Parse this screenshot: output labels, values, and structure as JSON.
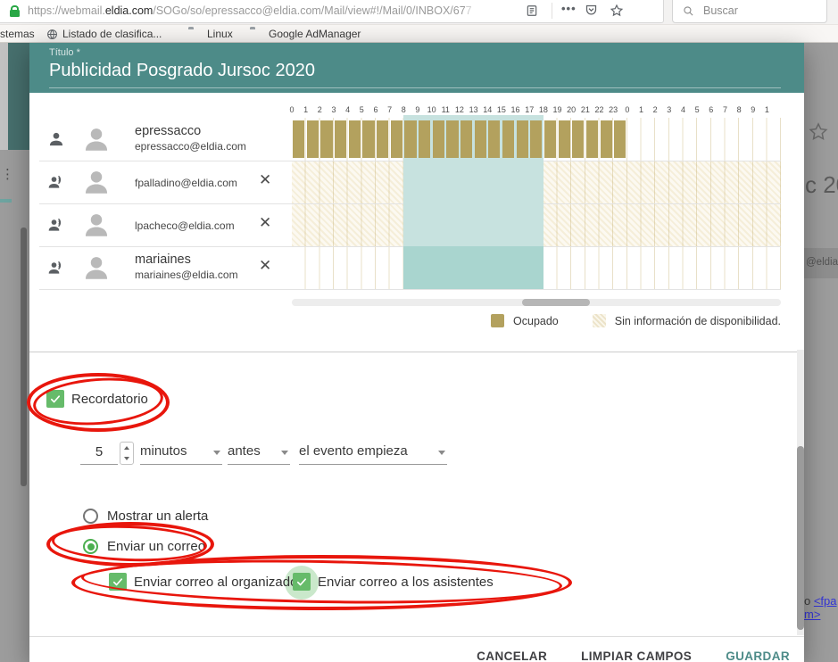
{
  "browser": {
    "url_scheme": "https://webmail.",
    "url_domain": "eldia.com",
    "url_path": "/SOGo/so/epressacco@eldia.com/Mail/view#!/Mail/0/INBOX/67",
    "url_faded": "7",
    "search_placeholder": "Buscar",
    "bookmarks": [
      "stemas",
      "Listado de clasifica...",
      "Linux",
      "Google AdManager"
    ]
  },
  "background": {
    "partial_title": "c 20",
    "partial_email": "@eldia",
    "link_prefix": "o ",
    "link1": "<fpa",
    "link2": "m>"
  },
  "dialog": {
    "title_label": "Título *",
    "title_value": "Publicidad Posgrado Jursoc 2020",
    "attendees": [
      {
        "name": "epressacco",
        "email": "epressacco@eldia.com",
        "removable": false,
        "availability": "busy",
        "busy_start": 0,
        "busy_end": 24,
        "band": "light"
      },
      {
        "name": "",
        "email": "fpalladino@eldia.com",
        "removable": true,
        "availability": "noinfo",
        "band": "light"
      },
      {
        "name": "",
        "email": "lpacheco@eldia.com",
        "removable": true,
        "availability": "noinfo",
        "band": "light"
      },
      {
        "name": "mariaines",
        "email": "mariaines@eldia.com",
        "removable": true,
        "availability": "free",
        "band": "dark"
      }
    ],
    "grid": {
      "hour_labels": [
        "0",
        "1",
        "2",
        "3",
        "4",
        "5",
        "6",
        "7",
        "8",
        "9",
        "10",
        "11",
        "12",
        "13",
        "14",
        "15",
        "16",
        "17",
        "18",
        "19",
        "20",
        "21",
        "22",
        "23",
        "0",
        "1",
        "2",
        "3",
        "4",
        "5",
        "6",
        "7",
        "8",
        "9",
        "1"
      ],
      "event_start_hour": 8,
      "event_end_hour": 18
    },
    "legend": {
      "busy_label": "Ocupado",
      "noinfo_label": "Sin información de disponibilidad."
    },
    "reminder": {
      "checkbox_label": "Recordatorio",
      "amount": "5",
      "unit": "minutos",
      "relation": "antes",
      "reference": "el evento empieza",
      "option_alert": "Mostrar un alerta",
      "option_email": "Enviar un correo",
      "cb_organizer": "Enviar correo al organizador",
      "cb_attendees": "Enviar correo a los asistentes"
    },
    "footer": {
      "cancel": "CANCELAR",
      "clear": "LIMPIAR CAMPOS",
      "save": "GUARDAR"
    }
  },
  "icons": {
    "remove": "✕",
    "kebab": "⋮"
  },
  "colors": {
    "header_teal": "#4d8b88",
    "busy_olive": "#b3a15e",
    "band_light": "#c7e2df",
    "band_dark": "#a9d5cf",
    "checkbox_green": "#66bb6a",
    "radio_green": "#4caf50",
    "annotation_red": "#e8160c",
    "save_teal": "#4d8b88"
  }
}
